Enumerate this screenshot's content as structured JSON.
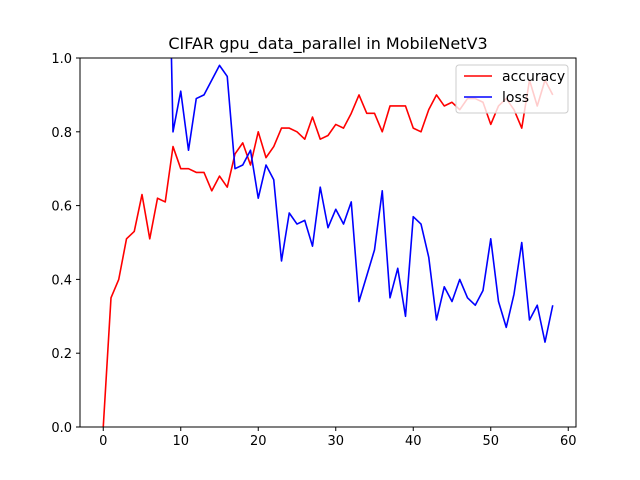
{
  "chart_data": {
    "type": "line",
    "title": "CIFAR gpu_data_parallel in MobileNetV3",
    "xlabel": "",
    "ylabel": "",
    "xlim": [
      -3.0,
      61.0
    ],
    "ylim": [
      0.0,
      1.0
    ],
    "xticks": [
      0,
      10,
      20,
      30,
      40,
      50,
      60
    ],
    "yticks": [
      0.0,
      0.2,
      0.4,
      0.6,
      0.8,
      1.0
    ],
    "grid": false,
    "legend_position": "top-right",
    "series": [
      {
        "name": "accuracy",
        "color": "#ff0000",
        "x": [
          0,
          1,
          2,
          3,
          4,
          5,
          6,
          7,
          8,
          9,
          10,
          11,
          12,
          13,
          14,
          15,
          16,
          17,
          18,
          19,
          20,
          21,
          22,
          23,
          24,
          25,
          26,
          27,
          28,
          29,
          30,
          31,
          32,
          33,
          34,
          35,
          36,
          37,
          38,
          39,
          40,
          41,
          42,
          43,
          44,
          45,
          46,
          47,
          48,
          49,
          50,
          51,
          52,
          53,
          54,
          55,
          56,
          57,
          58
        ],
        "y": [
          0.0,
          0.35,
          0.4,
          0.51,
          0.53,
          0.63,
          0.51,
          0.62,
          0.61,
          0.76,
          0.7,
          0.7,
          0.69,
          0.69,
          0.64,
          0.68,
          0.65,
          0.74,
          0.77,
          0.71,
          0.8,
          0.73,
          0.76,
          0.81,
          0.81,
          0.8,
          0.78,
          0.84,
          0.78,
          0.79,
          0.82,
          0.81,
          0.85,
          0.9,
          0.85,
          0.85,
          0.8,
          0.87,
          0.87,
          0.87,
          0.81,
          0.8,
          0.86,
          0.9,
          0.87,
          0.88,
          0.86,
          0.89,
          0.89,
          0.88,
          0.82,
          0.87,
          0.89,
          0.86,
          0.81,
          0.94,
          0.87,
          0.94,
          0.9
        ]
      },
      {
        "name": "loss",
        "color": "#0000ff",
        "x": [
          8.8,
          9,
          10,
          11,
          12,
          13,
          14,
          15,
          16,
          17,
          18,
          19,
          20,
          21,
          22,
          23,
          24,
          25,
          26,
          27,
          28,
          29,
          30,
          31,
          32,
          33,
          34,
          35,
          36,
          37,
          38,
          39,
          40,
          41,
          42,
          43,
          44,
          45,
          46,
          47,
          48,
          49,
          50,
          51,
          52,
          53,
          54,
          55,
          56,
          57,
          58
        ],
        "y": [
          1.0,
          0.8,
          0.91,
          0.75,
          0.89,
          0.9,
          0.94,
          0.98,
          0.95,
          0.7,
          0.71,
          0.75,
          0.62,
          0.71,
          0.67,
          0.45,
          0.58,
          0.55,
          0.56,
          0.49,
          0.65,
          0.54,
          0.59,
          0.55,
          0.61,
          0.34,
          0.41,
          0.48,
          0.64,
          0.35,
          0.43,
          0.3,
          0.57,
          0.55,
          0.46,
          0.29,
          0.38,
          0.34,
          0.4,
          0.35,
          0.33,
          0.37,
          0.51,
          0.34,
          0.27,
          0.36,
          0.5,
          0.29,
          0.33,
          0.23,
          0.33
        ]
      }
    ]
  }
}
